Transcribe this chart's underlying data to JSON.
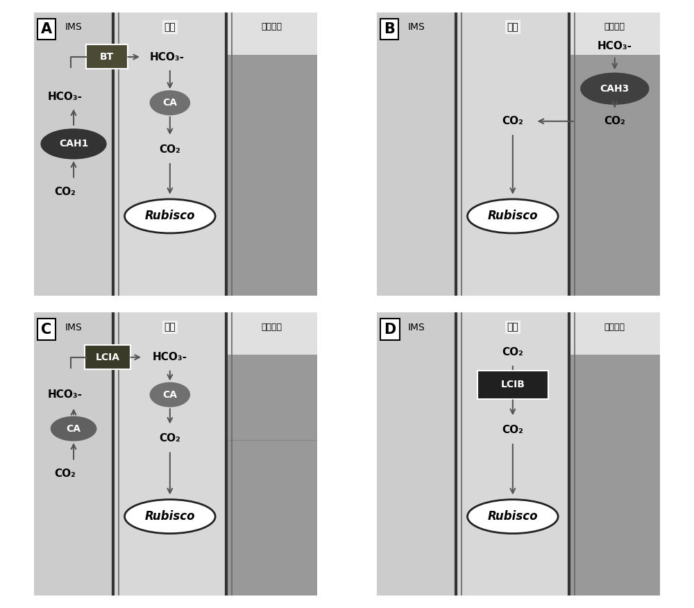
{
  "panel_A": {
    "label": "A",
    "ims_label": "IMS",
    "stroma_label": "基质",
    "thylakoid_label": "类囊体腔",
    "bt_label": "BT",
    "hco3_ims": "HCO₃-",
    "hco3_stroma": "HCO₃-",
    "ca_stroma": "CA",
    "co2_stroma": "CO₂",
    "co2_ims": "CO₂",
    "rubisco": "Rubisco",
    "cah1": "CAH1"
  },
  "panel_B": {
    "label": "B",
    "ims_label": "IMS",
    "stroma_label": "基质",
    "thylakoid_label": "类囊体腔",
    "hco3_thylakoid": "HCO₃-",
    "cah3": "CAH3",
    "co2_thylakoid": "CO₂",
    "co2_stroma": "CO₂",
    "rubisco": "Rubisco"
  },
  "panel_C": {
    "label": "C",
    "ims_label": "IMS",
    "stroma_label": "基质",
    "thylakoid_label": "类囊体腔",
    "lcia_label": "LCIA",
    "hco3_ims": "HCO₃-",
    "hco3_stroma": "HCO₃-",
    "ca_ims": "CA",
    "ca_stroma": "CA",
    "co2_stroma": "CO₂",
    "co2_ims": "CO₂",
    "rubisco": "Rubisco"
  },
  "panel_D": {
    "label": "D",
    "ims_label": "IMS",
    "stroma_label": "基质",
    "thylakoid_label": "类囊体腔",
    "lcib_label": "LCIB",
    "co2_top": "CO₂",
    "co2_bottom": "CO₂",
    "rubisco": "Rubisco"
  },
  "colors": {
    "ims_bg": "#cccccc",
    "stroma_bg": "#d8d8d8",
    "thylakoid_light": "#e0e0e0",
    "thylakoid_dark": "#999999",
    "membrane_dark": "#333333",
    "bt_box": "#4a4a35",
    "cah1_fill": "#333333",
    "ca_fill_dark": "#606060",
    "ca_fill_mid": "#707070",
    "cah3_fill": "#404040",
    "lcib_fill": "#202020",
    "lcia_fill": "#3a3a28",
    "rubisco_fill": "#ffffff",
    "rubisco_edge": "#222222",
    "arrow_color": "#555555",
    "text_white": "#ffffff",
    "text_black": "#111111",
    "outer_border": "#888888"
  }
}
